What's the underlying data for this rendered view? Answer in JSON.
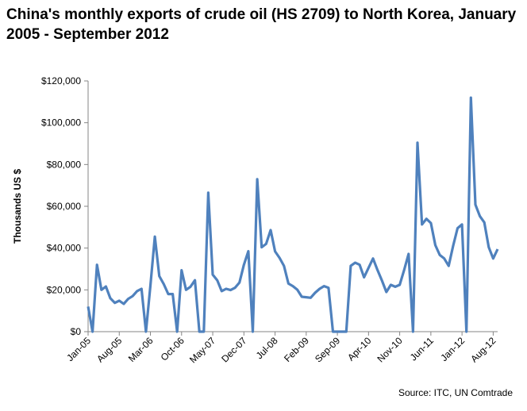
{
  "chart_data": {
    "type": "line",
    "title": "China's  monthly exports of crude oil (HS 2709) to North Korea, January 2005 - September 2012",
    "ylabel": "Thousands US $",
    "xlabel": "",
    "source": "Source: ITC, UN Comtrade",
    "ylim": [
      0,
      120000
    ],
    "yticks": [
      "$0",
      "$20,000",
      "$40,000",
      "$60,000",
      "$80,000",
      "$100,000",
      "$120,000"
    ],
    "ytick_values": [
      0,
      20000,
      40000,
      60000,
      80000,
      100000,
      120000
    ],
    "xticks": [
      "Jan-05",
      "Aug-05",
      "Mar-06",
      "Oct-06",
      "May-07",
      "Dec-07",
      "Jul-08",
      "Feb-09",
      "Sep-09",
      "Apr-10",
      "Nov-10",
      "Jun-11",
      "Jan-12",
      "Aug-12"
    ],
    "x_start": "Jan-05",
    "x_end": "Sep-12",
    "grid": false,
    "legend": "none",
    "line_color": "#4F81BD",
    "values": [
      12000,
      0,
      32000,
      20000,
      21600,
      16000,
      13800,
      14800,
      13300,
      15700,
      17000,
      19400,
      20500,
      0,
      22000,
      45500,
      26600,
      22800,
      18000,
      18000,
      0,
      29400,
      20000,
      21500,
      24600,
      0,
      0,
      66500,
      27300,
      24600,
      19400,
      20500,
      19900,
      21000,
      23500,
      32000,
      38500,
      0,
      73000,
      40400,
      42000,
      48600,
      38400,
      35300,
      31500,
      23000,
      21800,
      20100,
      16700,
      16500,
      16200,
      18600,
      20500,
      21800,
      21000,
      0,
      0,
      0,
      0,
      31500,
      33000,
      32000,
      26000,
      30500,
      35000,
      29500,
      24500,
      19000,
      22400,
      21500,
      22400,
      29500,
      37200,
      0,
      90400,
      51300,
      54000,
      52000,
      41400,
      36700,
      35000,
      31500,
      41000,
      49500,
      51300,
      0,
      112000,
      60800,
      55300,
      52300,
      40400,
      35000,
      39500
    ]
  }
}
